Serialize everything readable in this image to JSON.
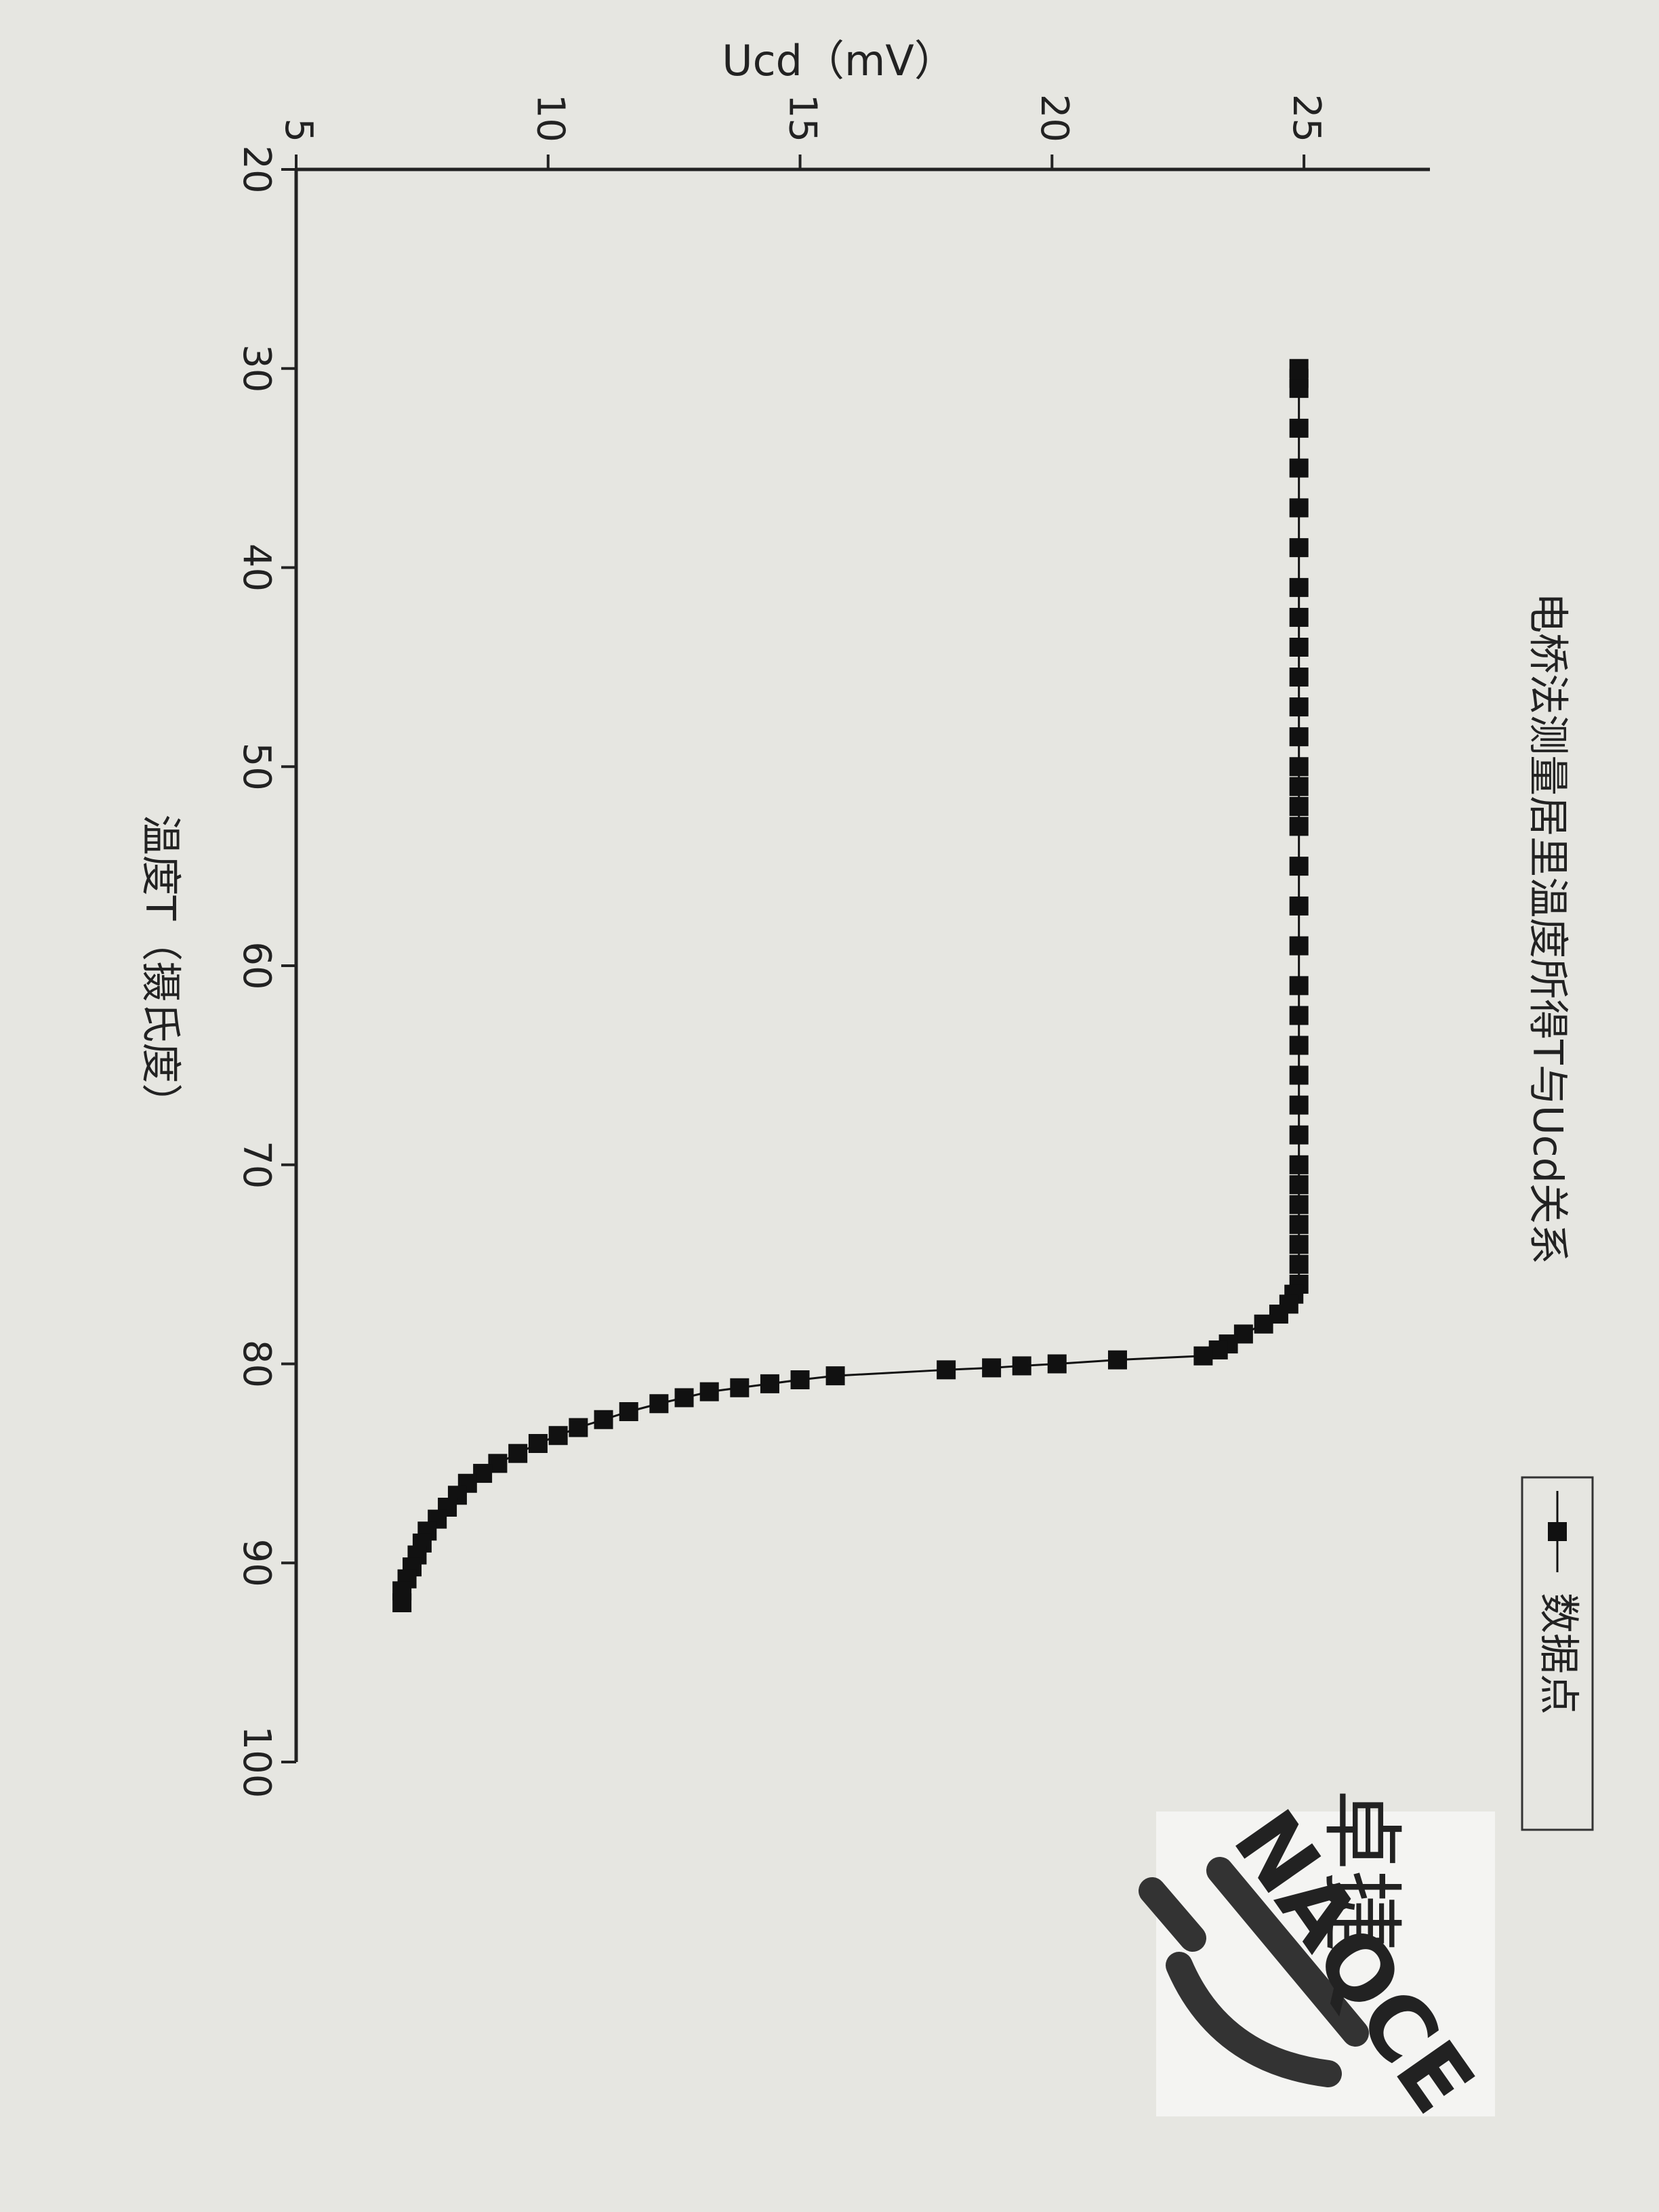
{
  "chart_data": {
    "type": "line",
    "title": "电桥法测量居里温度所得T与Ucd关系",
    "xlabel": "温度T（摄氏度）",
    "ylabel": "Ucd（mV）",
    "x": [
      30,
      30.5,
      31,
      33,
      35,
      37,
      39,
      41,
      42.5,
      44,
      45.5,
      47,
      48.5,
      50,
      51,
      52,
      53,
      55,
      57,
      59,
      61,
      62.5,
      64,
      65.5,
      67,
      68.5,
      70,
      71,
      72,
      73,
      74,
      75,
      76,
      76.5,
      77,
      77.5,
      78,
      78.5,
      79,
      79.3,
      79.6,
      79.8,
      80,
      80.1,
      80.2,
      80.3,
      80.6,
      80.8,
      81,
      81.2,
      81.4,
      81.7,
      82,
      82.4,
      82.8,
      83.2,
      83.6,
      84,
      84.5,
      85,
      85.5,
      86,
      86.6,
      87.2,
      87.8,
      88.4,
      89,
      89.6,
      90.2,
      90.8,
      91.4,
      92
    ],
    "series": [
      {
        "name": "数据点",
        "color": "#111111",
        "values": [
          24.9,
          24.9,
          24.9,
          24.9,
          24.9,
          24.9,
          24.9,
          24.9,
          24.9,
          24.9,
          24.9,
          24.9,
          24.9,
          24.9,
          24.9,
          24.9,
          24.9,
          24.9,
          24.9,
          24.9,
          24.9,
          24.9,
          24.9,
          24.9,
          24.9,
          24.9,
          24.9,
          24.9,
          24.9,
          24.9,
          24.9,
          24.9,
          24.9,
          24.8,
          24.7,
          24.5,
          24.2,
          23.8,
          23.5,
          23.3,
          23.0,
          21.3,
          20.1,
          19.4,
          18.8,
          17.9,
          15.7,
          15.0,
          14.4,
          13.8,
          13.2,
          12.7,
          12.2,
          11.6,
          11.1,
          10.6,
          10.2,
          9.8,
          9.4,
          9.0,
          8.7,
          8.4,
          8.2,
          8.0,
          7.8,
          7.6,
          7.5,
          7.4,
          7.3,
          7.2,
          7.1,
          7.1
        ]
      }
    ],
    "xlim": [
      20,
      100
    ],
    "xticks": [
      20,
      30,
      40,
      50,
      60,
      70,
      80,
      90,
      100
    ],
    "ylim": [
      5,
      27.5
    ],
    "yticks": [
      5,
      10,
      15,
      20,
      25
    ],
    "legend": "upper right"
  },
  "watermark": {
    "brand": "卓捷",
    "text": "NAQCE"
  }
}
